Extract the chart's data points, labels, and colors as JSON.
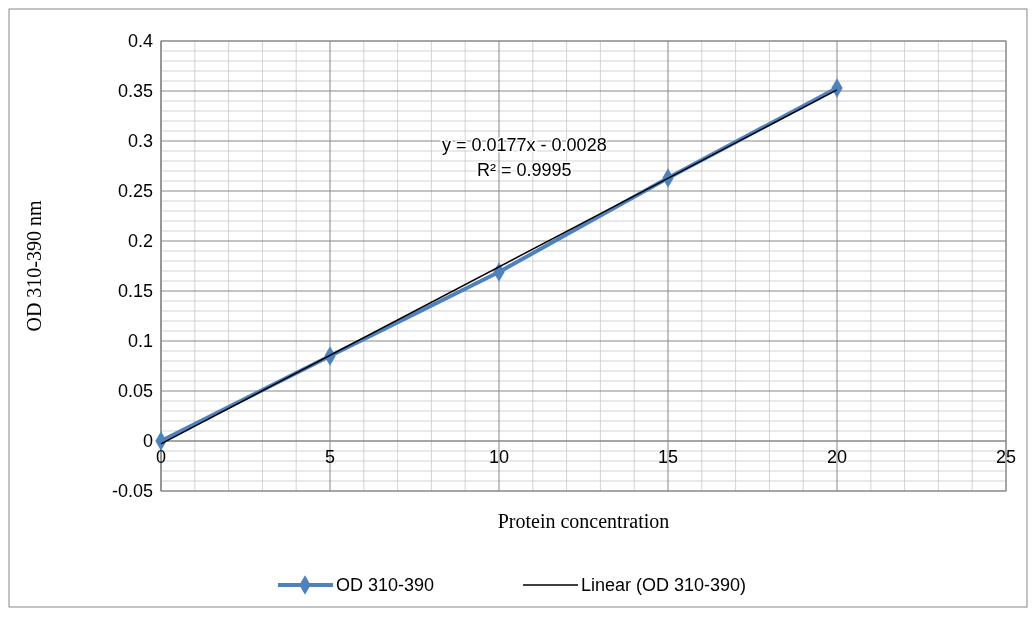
{
  "chart_data": {
    "type": "line",
    "xlabel": "Protein concentration",
    "ylabel": "OD 310-390 nm",
    "xlim": [
      0,
      25
    ],
    "xticks": [
      0,
      5,
      10,
      15,
      20,
      25
    ],
    "ylim": [
      -0.05,
      0.4
    ],
    "yticks": [
      -0.05,
      0,
      0.05,
      0.1,
      0.15,
      0.2,
      0.25,
      0.3,
      0.35,
      0.4
    ],
    "grid": true,
    "legend": "bottom",
    "annotations": [
      "y = 0.0177x - 0.0028",
      "R² = 0.9995"
    ],
    "series": [
      {
        "name": "OD 310-390",
        "color": "#4f81bd",
        "x": [
          0,
          5,
          10,
          15,
          20
        ],
        "values": [
          0,
          0.085,
          0.169,
          0.263,
          0.353
        ],
        "marker": "diamond",
        "line_style": "solid"
      },
      {
        "name": "Linear (OD 310-390)",
        "color": "#000000",
        "x": [
          0,
          20
        ],
        "values": [
          -0.0028,
          0.3512
        ],
        "marker": "none",
        "line_style": "solid"
      }
    ]
  }
}
